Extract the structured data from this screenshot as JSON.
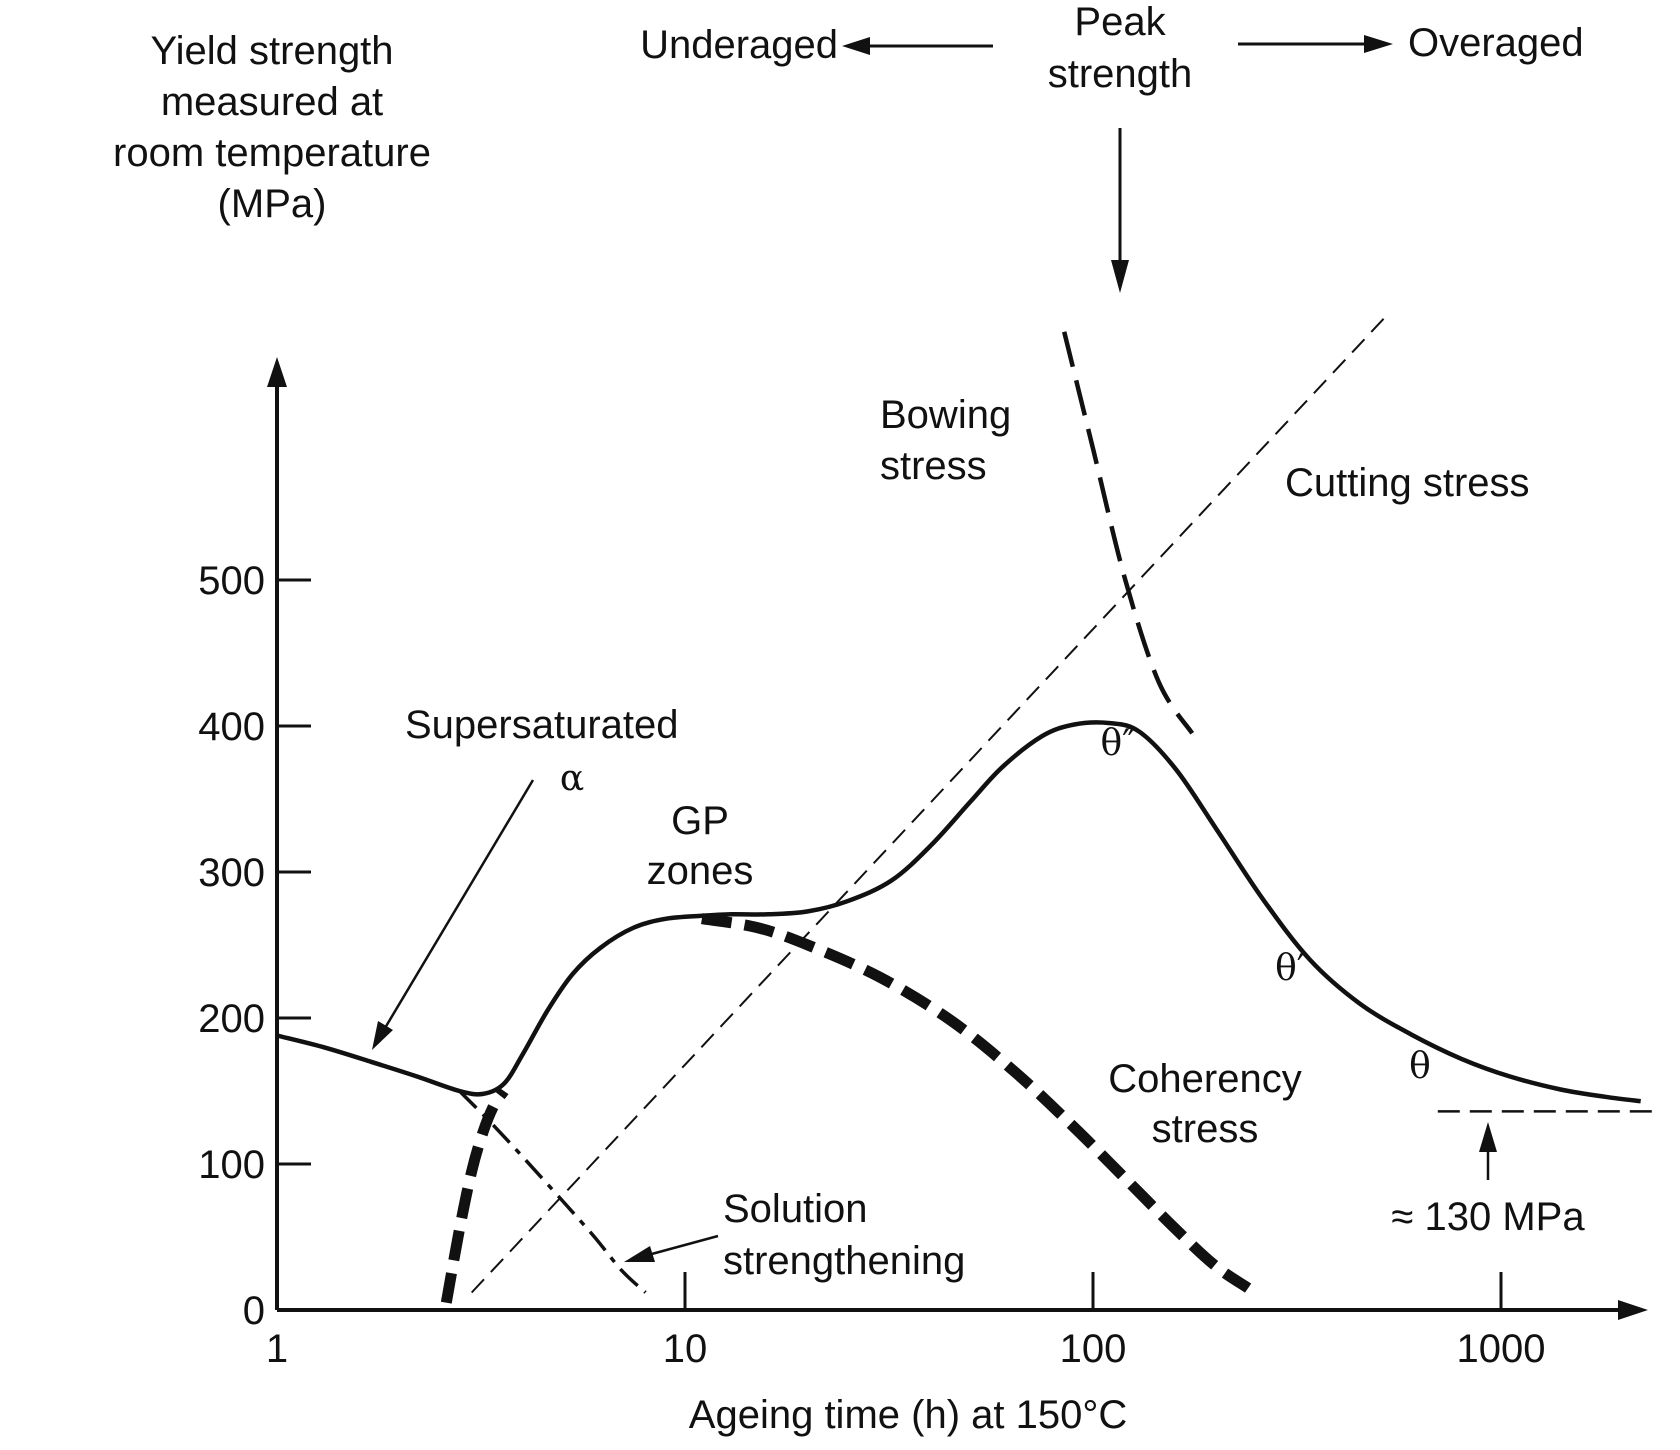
{
  "chart_data": {
    "type": "line",
    "title": "",
    "xlabel": "Ageing time (h) at 150°C",
    "ylabel": "Yield strength measured at room temperature (MPa)",
    "ylabel_lines": [
      "Yield strength",
      "measured at",
      "room temperature",
      "(MPa)"
    ],
    "x_scale": "log",
    "xlim": [
      1,
      2500
    ],
    "ylim": [
      0,
      600
    ],
    "x_ticks": [
      1,
      10,
      100,
      1000
    ],
    "x_tick_labels": [
      "1",
      "10",
      "100",
      "1000"
    ],
    "y_ticks": [
      0,
      100,
      200,
      300,
      400,
      500
    ],
    "y_tick_labels": [
      "0",
      "100",
      "200",
      "300",
      "400",
      "500"
    ],
    "series": [
      {
        "name": "Yield strength",
        "style": "solid-thick",
        "x": [
          1,
          1.3,
          1.7,
          2.2,
          2.8,
          3.2,
          3.6,
          4.0,
          4.6,
          5.3,
          6.2,
          7.5,
          9.0,
          11,
          13,
          16,
          20,
          25,
          32,
          40,
          50,
          60,
          75,
          90,
          110,
          130,
          160,
          200,
          260,
          340,
          450,
          600,
          800,
          1050,
          1400,
          1800,
          2200
        ],
        "y": [
          188,
          180,
          170,
          160,
          150,
          148,
          155,
          175,
          205,
          230,
          248,
          262,
          268,
          270,
          271,
          271,
          273,
          280,
          294,
          318,
          348,
          372,
          393,
          401,
          402,
          396,
          370,
          330,
          282,
          240,
          210,
          189,
          172,
          160,
          151,
          146,
          143
        ]
      },
      {
        "name": "Solution strengthening",
        "style": "dash-dot",
        "x": [
          2.8,
          3.3,
          4.0,
          5.0,
          6.0,
          7.0,
          8.0
        ],
        "y": [
          150,
          130,
          105,
          75,
          50,
          27,
          12
        ]
      },
      {
        "name": "GP zones",
        "style": "heavy-dash",
        "x": [
          2.6,
          2.8,
          3.0,
          3.2,
          3.4,
          3.6
        ],
        "y": [
          5,
          55,
          95,
          122,
          140,
          150
        ]
      },
      {
        "name": "Coherency stress",
        "style": "heavy-dash",
        "x": [
          11,
          15,
          20,
          30,
          45,
          65,
          90,
          120,
          160,
          200,
          240
        ],
        "y": [
          268,
          262,
          250,
          228,
          198,
          162,
          125,
          90,
          55,
          30,
          15
        ]
      },
      {
        "name": "Cutting stress",
        "style": "thin-dash",
        "x": [
          3.0,
          520
        ],
        "y": [
          12,
          680
        ]
      },
      {
        "name": "Bowing stress",
        "style": "long-dash",
        "x": [
          85,
          100,
          120,
          145,
          175
        ],
        "y": [
          670,
          590,
          500,
          430,
          395
        ]
      },
      {
        "name": "Overaged limit",
        "style": "dashed",
        "x": [
          700,
          2400
        ],
        "y": [
          136,
          136
        ]
      }
    ],
    "annotations": {
      "underaged": "Underaged",
      "peak_line1": "Peak",
      "peak_line2": "strength",
      "overaged": "Overaged",
      "supersaturated_line1": "Supersaturated",
      "alpha": "α",
      "gp_line1": "GP",
      "gp_line2": "zones",
      "bowing_line1": "Bowing",
      "bowing_line2": "stress",
      "cutting": "Cutting stress",
      "theta_dd": "θ″",
      "theta_d": "θ′",
      "theta": "θ",
      "coherency_line1": "Coherency",
      "coherency_line2": "stress",
      "solution_line1": "Solution",
      "solution_line2": "strengthening",
      "mpa_130": "≈ 130 MPa"
    }
  }
}
